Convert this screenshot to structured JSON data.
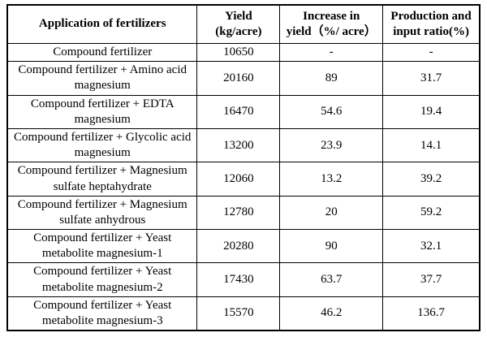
{
  "table": {
    "colors": {
      "border": "#000000",
      "text": "#000000",
      "background": "#ffffff"
    },
    "headers": [
      {
        "label": "Application of fertilizers"
      },
      {
        "line1": "Yield",
        "line2": "(kg/acre)"
      },
      {
        "line1": "Increase in",
        "line2": "yield（%/ acre）"
      },
      {
        "line1": "Production and",
        "line2": "input ratio(%)"
      }
    ],
    "rows": [
      {
        "name": "Compound fertilizer",
        "yield": "10650",
        "increase": "-",
        "ratio": "-"
      },
      {
        "name": "Compound fertilizer + Amino acid magnesium",
        "yield": "20160",
        "increase": "89",
        "ratio": "31.7"
      },
      {
        "name": "Compound fertilizer + EDTA magnesium",
        "yield": "16470",
        "increase": "54.6",
        "ratio": "19.4"
      },
      {
        "name": "Compound fertilizer + Glycolic acid magnesium",
        "yield": "13200",
        "increase": "23.9",
        "ratio": "14.1"
      },
      {
        "name": "Compound fertilizer + Magnesium sulfate heptahydrate",
        "yield": "12060",
        "increase": "13.2",
        "ratio": "39.2"
      },
      {
        "name": "Compound fertilizer + Magnesium sulfate anhydrous",
        "yield": "12780",
        "increase": "20",
        "ratio": "59.2"
      },
      {
        "name": "Compound fertilizer + Yeast metabolite magnesium-1",
        "yield": "20280",
        "increase": "90",
        "ratio": "32.1"
      },
      {
        "name": "Compound fertilizer + Yeast metabolite magnesium-2",
        "yield": "17430",
        "increase": "63.7",
        "ratio": "37.7"
      },
      {
        "name": "Compound fertilizer + Yeast metabolite magnesium-3",
        "yield": "15570",
        "increase": "46.2",
        "ratio": "136.7"
      }
    ]
  }
}
